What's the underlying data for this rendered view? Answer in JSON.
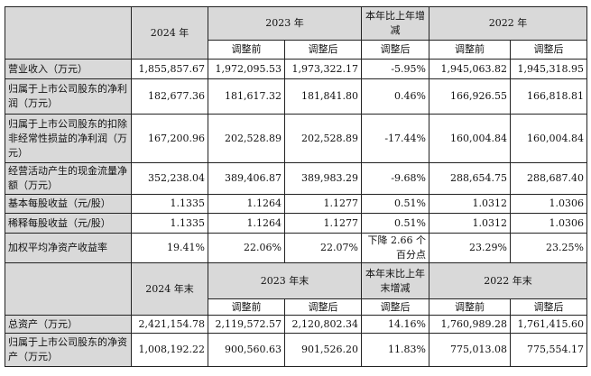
{
  "header1": {
    "y2024": "2024 年",
    "y2023": "2023 年",
    "change": "本年比上年增减",
    "y2022": "2022 年",
    "sub": [
      "调整前",
      "调整后",
      "调整后",
      "调整前",
      "调整后"
    ]
  },
  "rows1": [
    {
      "label": "营业收入（万元）",
      "values": [
        "1,855,857.67",
        "1,972,095.53",
        "1,973,322.17",
        "-5.95%",
        "1,945,063.82",
        "1,945,318.95"
      ]
    },
    {
      "label": "归属于上市公司股东的净利润（万元）",
      "values": [
        "182,677.36",
        "181,617.32",
        "181,841.80",
        "0.46%",
        "166,926.55",
        "166,818.81"
      ]
    },
    {
      "label": "归属于上市公司股东的扣除非经常性损益的净利润（万元）",
      "values": [
        "167,200.96",
        "202,528.89",
        "202,528.89",
        "-17.44%",
        "160,004.84",
        "160,004.84"
      ]
    },
    {
      "label": "经营活动产生的现金流量净额（万元）",
      "values": [
        "352,238.04",
        "389,406.87",
        "389,983.29",
        "-9.68%",
        "288,654.75",
        "288,687.40"
      ]
    },
    {
      "label": "基本每股收益（元/股）",
      "values": [
        "1.1335",
        "1.1264",
        "1.1277",
        "0.51%",
        "1.0312",
        "1.0306"
      ]
    },
    {
      "label": "稀释每股收益（元/股）",
      "values": [
        "1.1335",
        "1.1264",
        "1.1277",
        "0.51%",
        "1.0312",
        "1.0306"
      ]
    },
    {
      "label": "加权平均净资产收益率",
      "values": [
        "19.41%",
        "22.06%",
        "22.07%",
        "下降 2.66 个百分点",
        "23.29%",
        "23.25%"
      ]
    }
  ],
  "header2": {
    "y2024": "2024 年末",
    "y2023": "2023 年末",
    "change": "本年末比上年末增减",
    "y2022": "2022 年末",
    "sub": [
      "调整前",
      "调整后",
      "调整后",
      "调整前",
      "调整后"
    ]
  },
  "rows2": [
    {
      "label": "总资产（万元）",
      "values": [
        "2,421,154.78",
        "2,119,572.57",
        "2,120,802.34",
        "14.16%",
        "1,760,989.28",
        "1,761,415.60"
      ]
    },
    {
      "label": "归属于上市公司股东的净资产（万元）",
      "values": [
        "1,008,192.22",
        "900,560.63",
        "901,526.20",
        "11.83%",
        "775,013.08",
        "775,554.17"
      ]
    }
  ]
}
